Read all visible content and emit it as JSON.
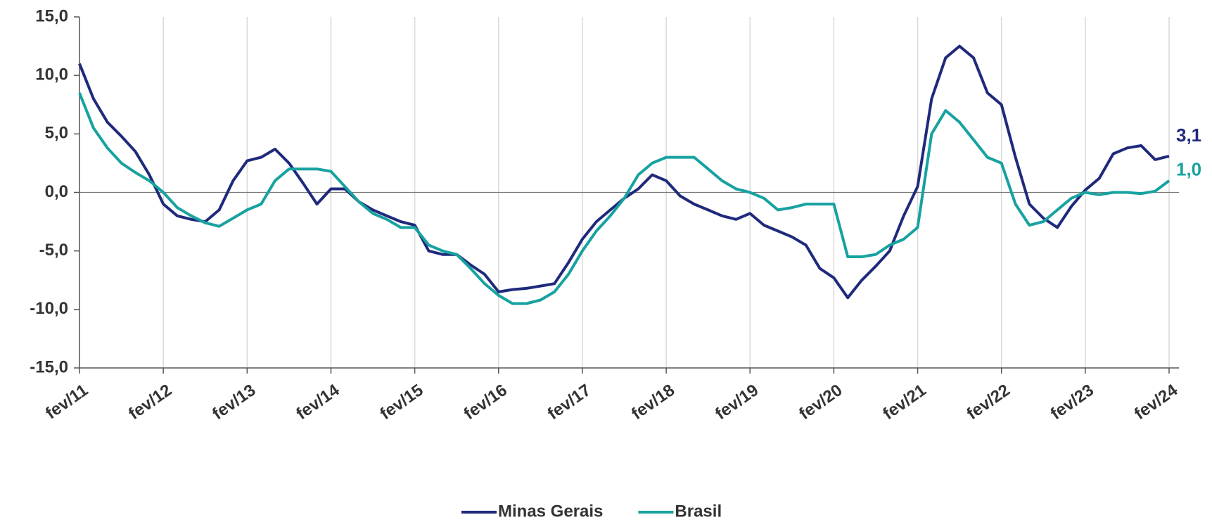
{
  "chart_data": {
    "type": "line",
    "categories": [
      "fev/11",
      null,
      null,
      null,
      null,
      null,
      "fev/12",
      null,
      null,
      null,
      null,
      null,
      "fev/13",
      null,
      null,
      null,
      null,
      null,
      "fev/14",
      null,
      null,
      null,
      null,
      null,
      "fev/15",
      null,
      null,
      null,
      null,
      null,
      "fev/16",
      null,
      null,
      null,
      null,
      null,
      "fev/17",
      null,
      null,
      null,
      null,
      null,
      "fev/18",
      null,
      null,
      null,
      null,
      null,
      "fev/19",
      null,
      null,
      null,
      null,
      null,
      "fev/20",
      null,
      null,
      null,
      null,
      null,
      "fev/21",
      null,
      null,
      null,
      null,
      null,
      "fev/22",
      null,
      null,
      null,
      null,
      null,
      "fev/23",
      null,
      null,
      null,
      null,
      null,
      "fev/24"
    ],
    "series": [
      {
        "name": "Minas Gerais",
        "color": "#1f2a7c",
        "values": [
          11.0,
          8.0,
          6.0,
          4.8,
          3.5,
          1.5,
          -1.0,
          -2.0,
          -2.3,
          -2.5,
          -1.5,
          1.0,
          2.7,
          3.0,
          3.7,
          2.5,
          0.8,
          -1.0,
          0.3,
          0.3,
          -0.8,
          -1.5,
          -2.0,
          -2.5,
          -2.8,
          -5.0,
          -5.3,
          -5.3,
          -6.2,
          -7.0,
          -8.5,
          -8.3,
          -8.2,
          -8.0,
          -7.8,
          -6.0,
          -4.0,
          -2.5,
          -1.5,
          -0.5,
          0.3,
          1.5,
          1.0,
          -0.3,
          -1.0,
          -1.5,
          -2.0,
          -2.3,
          -1.8,
          -2.8,
          -3.3,
          -3.8,
          -4.5,
          -6.5,
          -7.3,
          -9.0,
          -7.5,
          -6.3,
          -5.0,
          -2.0,
          0.5,
          8.0,
          11.5,
          12.5,
          11.5,
          8.5,
          7.5,
          3.0,
          -1.0,
          -2.2,
          -3.0,
          -1.2,
          0.2,
          1.2,
          3.3,
          3.8,
          4.0,
          2.8,
          3.1
        ],
        "value_labels": [
          null,
          null,
          null,
          null,
          null,
          null,
          null,
          null,
          null,
          null,
          null,
          null,
          null,
          null,
          null,
          null,
          null,
          null,
          null,
          null,
          null,
          null,
          null,
          null,
          null,
          null,
          null,
          null,
          null,
          null,
          null,
          null,
          null,
          null,
          null,
          null,
          null,
          null,
          null,
          null,
          null,
          null,
          null,
          null,
          null,
          null,
          null,
          null,
          null,
          null,
          null,
          null,
          null,
          null,
          null,
          null,
          null,
          null,
          null,
          null,
          null,
          null,
          null,
          null,
          null,
          null,
          null,
          null,
          null,
          null,
          null,
          null,
          null,
          null,
          null,
          null,
          null,
          null,
          "3,1"
        ]
      },
      {
        "name": "Brasil",
        "color": "#17a2a0",
        "values": [
          8.5,
          5.5,
          3.8,
          2.5,
          1.7,
          1.0,
          0.0,
          -1.3,
          -2.0,
          -2.6,
          -2.9,
          -2.2,
          -1.5,
          -1.0,
          1.0,
          2.0,
          2.0,
          2.0,
          1.8,
          0.5,
          -0.8,
          -1.8,
          -2.3,
          -3.0,
          -3.0,
          -4.5,
          -5.0,
          -5.3,
          -6.5,
          -7.8,
          -8.8,
          -9.5,
          -9.5,
          -9.2,
          -8.5,
          -7.0,
          -5.0,
          -3.3,
          -2.0,
          -0.5,
          1.5,
          2.5,
          3.0,
          3.0,
          3.0,
          2.0,
          1.0,
          0.3,
          0.0,
          -0.5,
          -1.5,
          -1.3,
          -1.0,
          -1.0,
          -1.0,
          -5.5,
          -5.5,
          -5.3,
          -4.5,
          -4.0,
          -3.0,
          5.0,
          7.0,
          6.0,
          4.5,
          3.0,
          2.5,
          -1.0,
          -2.8,
          -2.5,
          -1.5,
          -0.5,
          0.0,
          -0.2,
          0.0,
          0.0,
          -0.1,
          0.1,
          1.0
        ],
        "value_labels": [
          null,
          null,
          null,
          null,
          null,
          null,
          null,
          null,
          null,
          null,
          null,
          null,
          null,
          null,
          null,
          null,
          null,
          null,
          null,
          null,
          null,
          null,
          null,
          null,
          null,
          null,
          null,
          null,
          null,
          null,
          null,
          null,
          null,
          null,
          null,
          null,
          null,
          null,
          null,
          null,
          null,
          null,
          null,
          null,
          null,
          null,
          null,
          null,
          null,
          null,
          null,
          null,
          null,
          null,
          null,
          null,
          null,
          null,
          null,
          null,
          null,
          null,
          null,
          null,
          null,
          null,
          null,
          null,
          null,
          null,
          null,
          null,
          null,
          null,
          null,
          null,
          null,
          null,
          "1,0"
        ]
      }
    ],
    "ylim": [
      -15,
      15
    ],
    "yticks": [
      {
        "value": -15,
        "label": "-15,0"
      },
      {
        "value": -10,
        "label": "-10,0"
      },
      {
        "value": -5,
        "label": "-5,0"
      },
      {
        "value": 0,
        "label": "0,0"
      },
      {
        "value": 5,
        "label": "5,0"
      },
      {
        "value": 10,
        "label": "10,0"
      },
      {
        "value": 15,
        "label": "15,0"
      }
    ],
    "grid": true,
    "legend": "bottom"
  }
}
